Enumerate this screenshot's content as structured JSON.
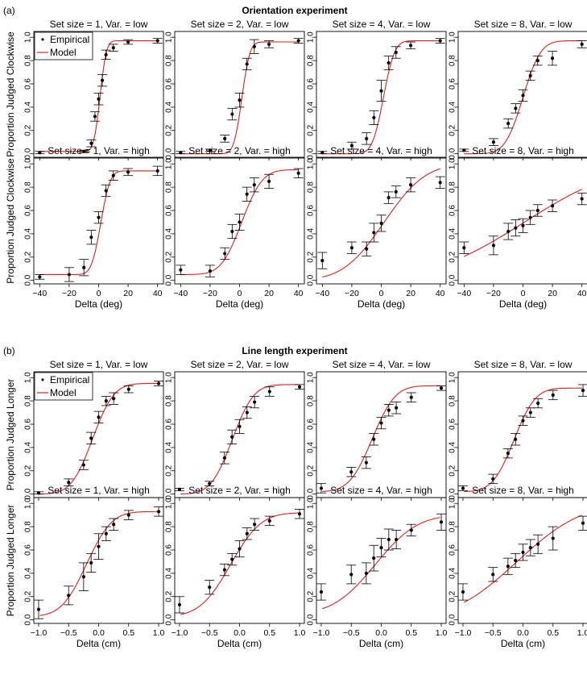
{
  "colors": {
    "model": "#e0201b",
    "empirical": "#000000",
    "frame": "#000000"
  },
  "legend": {
    "empirical": "Empirical",
    "model": "Model",
    "empirical_marker": "•",
    "model_marker": "line"
  },
  "chart_data": [
    {
      "type": "line-with-errorbars",
      "label": "(a)",
      "title": "Orientation experiment",
      "ylabel": "Proportion Judged Clockwise",
      "xlabel": "Delta (deg)",
      "xlim": [
        -44,
        44
      ],
      "ylim": [
        -0.03,
        1.05
      ],
      "xticks": [
        -40,
        -20,
        0,
        20,
        40
      ],
      "yticks": [
        0.0,
        0.2,
        0.4,
        0.6,
        0.8,
        1.0
      ],
      "ytick_labels": [
        "0.0",
        "0.2",
        "0.4",
        "0.6",
        "0.8",
        "1.0"
      ],
      "panels": [
        {
          "title": "Set size =  1, Var. = low",
          "x": [
            -40,
            -10,
            -5,
            -2.5,
            0,
            2.5,
            5,
            10,
            20,
            40
          ],
          "y": [
            0.01,
            0.02,
            0.09,
            0.32,
            0.47,
            0.63,
            0.85,
            0.91,
            0.96,
            0.97
          ],
          "err": [
            0.01,
            0.01,
            0.03,
            0.04,
            0.05,
            0.05,
            0.04,
            0.03,
            0.02,
            0.02
          ],
          "model": {
            "mu": 1.0,
            "sigma": 3.4,
            "lapse_low": 0.02,
            "lapse_high": 0.03
          }
        },
        {
          "title": "Set size =  2, Var. = low",
          "x": [
            -40,
            -20,
            -10,
            -5,
            0,
            5,
            10,
            20,
            40
          ],
          "y": [
            0.01,
            0.03,
            0.13,
            0.34,
            0.46,
            0.77,
            0.92,
            0.94,
            0.97
          ],
          "err": [
            0.01,
            0.01,
            0.03,
            0.05,
            0.06,
            0.05,
            0.06,
            0.03,
            0.02
          ],
          "model": {
            "mu": 1.6,
            "sigma": 4.3,
            "lapse_low": 0.0,
            "lapse_high": 0.04
          }
        },
        {
          "title": "Set size =  4, Var. = low",
          "x": [
            -40,
            -20,
            -10,
            -5,
            0,
            5,
            10,
            20,
            40
          ],
          "y": [
            0.01,
            0.07,
            0.13,
            0.31,
            0.54,
            0.78,
            0.87,
            0.93,
            0.97
          ],
          "err": [
            0.01,
            0.03,
            0.05,
            0.06,
            0.09,
            0.06,
            0.05,
            0.03,
            0.02
          ],
          "model": {
            "mu": 1.5,
            "sigma": 6.0,
            "lapse_low": 0.0,
            "lapse_high": 0.03
          }
        },
        {
          "title": "Set size =  8, Var. = low",
          "x": [
            -40,
            -20,
            -10,
            -5,
            0,
            5,
            10,
            20,
            40
          ],
          "y": [
            0.03,
            0.1,
            0.26,
            0.39,
            0.5,
            0.67,
            0.8,
            0.82,
            0.94
          ],
          "err": [
            0.01,
            0.03,
            0.04,
            0.04,
            0.05,
            0.04,
            0.04,
            0.06,
            0.03
          ],
          "model": {
            "mu": 0.0,
            "sigma": 9.5,
            "lapse_low": 0.0,
            "lapse_high": 0.03
          }
        },
        {
          "title": "Set size =  1, Var. = high",
          "x": [
            -40,
            -20,
            -10,
            -5,
            0,
            5,
            10,
            20,
            40
          ],
          "y": [
            0.03,
            0.05,
            0.11,
            0.37,
            0.54,
            0.77,
            0.9,
            0.93,
            0.94
          ],
          "err": [
            0.02,
            0.06,
            0.07,
            0.06,
            0.05,
            0.05,
            0.04,
            0.03,
            0.04
          ],
          "model": {
            "mu": 1.5,
            "sigma": 5.0,
            "lapse_low": 0.05,
            "lapse_high": 0.06
          }
        },
        {
          "title": "Set size =  2, Var. = high",
          "x": [
            -40,
            -20,
            -10,
            -5,
            0,
            5,
            10,
            20,
            40
          ],
          "y": [
            0.09,
            0.08,
            0.23,
            0.42,
            0.5,
            0.74,
            0.82,
            0.85,
            0.92
          ],
          "err": [
            0.04,
            0.05,
            0.05,
            0.06,
            0.07,
            0.06,
            0.06,
            0.06,
            0.04
          ],
          "model": {
            "mu": 1.5,
            "sigma": 11.0,
            "lapse_low": 0.05,
            "lapse_high": 0.05
          }
        },
        {
          "title": "Set size =  4, Var. = high",
          "x": [
            -40,
            -20,
            -10,
            -5,
            0,
            5,
            10,
            20,
            40
          ],
          "y": [
            0.17,
            0.28,
            0.27,
            0.41,
            0.49,
            0.71,
            0.76,
            0.82,
            0.84
          ],
          "err": [
            0.07,
            0.05,
            0.06,
            0.08,
            0.07,
            0.05,
            0.05,
            0.06,
            0.05
          ],
          "model": {
            "mu": 2.0,
            "sigma": 22.0,
            "lapse_low": 0.0,
            "lapse_high": 0.0
          }
        },
        {
          "title": "Set size =  8, Var. = high",
          "x": [
            -40,
            -20,
            -10,
            -5,
            0,
            5,
            10,
            20,
            40
          ],
          "y": [
            0.28,
            0.3,
            0.42,
            0.45,
            0.47,
            0.54,
            0.6,
            0.64,
            0.7
          ],
          "err": [
            0.05,
            0.08,
            0.07,
            0.07,
            0.06,
            0.06,
            0.05,
            0.05,
            0.05
          ],
          "model": {
            "mu": 1.0,
            "sigma": 50.0,
            "lapse_low": 0.0,
            "lapse_high": 0.0
          }
        }
      ]
    },
    {
      "type": "line-with-errorbars",
      "label": "(b)",
      "title": "Line length experiment",
      "ylabel": "Proportion Judged Longer",
      "xlabel": "Delta (cm)",
      "xlim": [
        -1.08,
        1.08
      ],
      "ylim": [
        -0.03,
        1.05
      ],
      "xticks": [
        -1.0,
        -0.5,
        0.0,
        0.5,
        1.0
      ],
      "xtick_labels": [
        "−1.0",
        "−0.5",
        "0.0",
        "0.5",
        "1.0"
      ],
      "yticks": [
        0.0,
        0.2,
        0.4,
        0.6,
        0.8,
        1.0
      ],
      "ytick_labels": [
        "0.0",
        "0.2",
        "0.4",
        "0.6",
        "0.8",
        "1.0"
      ],
      "panels": [
        {
          "title": "Set size =  1, Var. = low",
          "x": [
            -1.0,
            -0.5,
            -0.25,
            -0.125,
            0,
            0.125,
            0.25,
            0.5,
            1.0
          ],
          "y": [
            0.01,
            0.1,
            0.25,
            0.48,
            0.66,
            0.8,
            0.82,
            0.9,
            0.95
          ],
          "err": [
            0.01,
            0.03,
            0.04,
            0.05,
            0.05,
            0.04,
            0.05,
            0.03,
            0.02
          ],
          "model": {
            "mu": -0.1,
            "sigma": 0.28,
            "lapse_low": 0.0,
            "lapse_high": 0.05
          }
        },
        {
          "title": "Set size =  2, Var. = low",
          "x": [
            -1.0,
            -0.5,
            -0.25,
            -0.125,
            0,
            0.125,
            0.25,
            0.5,
            1.0
          ],
          "y": [
            0.04,
            0.09,
            0.31,
            0.49,
            0.58,
            0.7,
            0.79,
            0.88,
            0.92
          ],
          "err": [
            0.01,
            0.02,
            0.05,
            0.06,
            0.06,
            0.05,
            0.05,
            0.04,
            0.02
          ],
          "model": {
            "mu": -0.12,
            "sigma": 0.28,
            "lapse_low": 0.0,
            "lapse_high": 0.06
          }
        },
        {
          "title": "Set size =  4, Var. = low",
          "x": [
            -1.0,
            -0.5,
            -0.25,
            -0.125,
            0,
            0.125,
            0.25,
            0.5,
            1.0
          ],
          "y": [
            0.05,
            0.19,
            0.27,
            0.47,
            0.61,
            0.72,
            0.74,
            0.83,
            0.91
          ],
          "err": [
            0.04,
            0.04,
            0.05,
            0.05,
            0.05,
            0.05,
            0.05,
            0.04,
            0.02
          ],
          "model": {
            "mu": -0.15,
            "sigma": 0.3,
            "lapse_low": 0.02,
            "lapse_high": 0.07
          }
        },
        {
          "title": "Set size =  8, Var. = low",
          "x": [
            -1.0,
            -0.5,
            -0.25,
            -0.125,
            0,
            0.125,
            0.25,
            0.5,
            1.0
          ],
          "y": [
            0.05,
            0.13,
            0.35,
            0.47,
            0.63,
            0.7,
            0.78,
            0.85,
            0.89
          ],
          "err": [
            0.02,
            0.04,
            0.04,
            0.05,
            0.04,
            0.04,
            0.04,
            0.04,
            0.05
          ],
          "model": {
            "mu": -0.15,
            "sigma": 0.28,
            "lapse_low": 0.02,
            "lapse_high": 0.09
          }
        },
        {
          "title": "Set size =  1, Var. = high",
          "x": [
            -1.0,
            -0.5,
            -0.25,
            -0.125,
            0,
            0.125,
            0.25,
            0.5,
            1.0
          ],
          "y": [
            0.09,
            0.21,
            0.37,
            0.49,
            0.63,
            0.74,
            0.82,
            0.9,
            0.93
          ],
          "err": [
            0.08,
            0.08,
            0.12,
            0.08,
            0.11,
            0.06,
            0.05,
            0.04,
            0.04
          ],
          "model": {
            "mu": -0.2,
            "sigma": 0.33,
            "lapse_low": 0.03,
            "lapse_high": 0.07
          }
        },
        {
          "title": "Set size =  2, Var. = high",
          "x": [
            -1.0,
            -0.5,
            -0.25,
            -0.125,
            0,
            0.125,
            0.25,
            0.5,
            1.0
          ],
          "y": [
            0.13,
            0.28,
            0.43,
            0.52,
            0.61,
            0.74,
            0.82,
            0.85,
            0.91
          ],
          "err": [
            0.07,
            0.06,
            0.05,
            0.05,
            0.07,
            0.05,
            0.05,
            0.04,
            0.04
          ],
          "model": {
            "mu": -0.15,
            "sigma": 0.4,
            "lapse_low": 0.03,
            "lapse_high": 0.08
          }
        },
        {
          "title": "Set size =  4, Var. = high",
          "x": [
            -1.0,
            -0.5,
            -0.25,
            -0.125,
            0,
            0.125,
            0.25,
            0.5,
            1.0
          ],
          "y": [
            0.24,
            0.39,
            0.4,
            0.53,
            0.62,
            0.69,
            0.69,
            0.77,
            0.84
          ],
          "err": [
            0.07,
            0.08,
            0.09,
            0.11,
            0.08,
            0.09,
            0.08,
            0.05,
            0.07
          ],
          "model": {
            "mu": -0.1,
            "sigma": 0.55,
            "lapse_low": 0.05,
            "lapse_high": 0.1
          }
        },
        {
          "title": "Set size =  8, Var. = high",
          "x": [
            -1.0,
            -0.5,
            -0.25,
            -0.125,
            0,
            0.125,
            0.25,
            0.5,
            1.0
          ],
          "y": [
            0.24,
            0.39,
            0.46,
            0.51,
            0.58,
            0.62,
            0.65,
            0.7,
            0.83
          ],
          "err": [
            0.07,
            0.06,
            0.07,
            0.06,
            0.07,
            0.07,
            0.08,
            0.1,
            0.06
          ],
          "model": {
            "mu": -0.1,
            "sigma": 0.85,
            "lapse_low": 0.0,
            "lapse_high": 0.0
          }
        }
      ]
    }
  ]
}
